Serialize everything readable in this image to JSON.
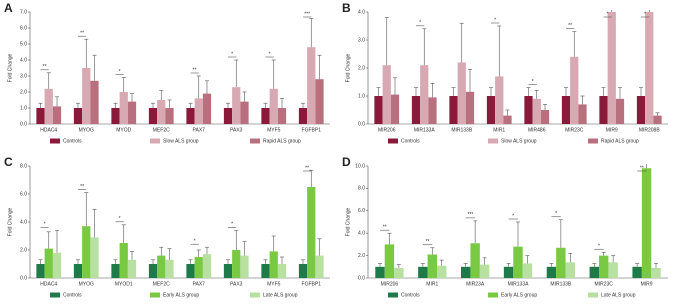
{
  "chart_data": [
    {
      "type": "bar",
      "label": "A",
      "y_label": "Fold Change",
      "categories": [
        "HDAC4",
        "MYOG",
        "MYOD",
        "MEF2C",
        "PAX7",
        "PAX3",
        "MYF5",
        "FGFBP1"
      ],
      "series": [
        {
          "name": "Controls",
          "color": "#8b1a3a",
          "values": [
            1,
            1,
            1,
            1,
            1,
            1,
            1,
            1
          ],
          "errors": [
            0.3,
            0.3,
            0.3,
            0.3,
            0.3,
            0.3,
            0.3,
            0.3
          ]
        },
        {
          "name": "Slow ALS group",
          "color": "#d9a9b3",
          "values": [
            2.2,
            3.5,
            2.0,
            1.5,
            1.6,
            2.3,
            2.2,
            4.8
          ],
          "errors": [
            1.0,
            1.8,
            0.9,
            0.6,
            1.4,
            1.7,
            1.8,
            1.8
          ]
        },
        {
          "name": "Rapid ALS group",
          "color": "#b8707f",
          "values": [
            1.1,
            2.7,
            1.4,
            1.0,
            1.9,
            1.4,
            1.0,
            2.8
          ],
          "errors": [
            0.6,
            1.6,
            0.5,
            0.5,
            0.8,
            0.6,
            0.6,
            1.5
          ]
        }
      ],
      "ylim": [
        0,
        7
      ],
      "yticks": [
        {
          "value": 0,
          "label": "0.0"
        },
        {
          "value": 1,
          "label": "1.0"
        },
        {
          "value": 2,
          "label": "2.0"
        },
        {
          "value": 3,
          "label": "3.0"
        },
        {
          "value": 4,
          "label": "4.0"
        },
        {
          "value": 5,
          "label": "5.0"
        },
        {
          "value": 6,
          "label": "6.0"
        },
        {
          "value": 7,
          "label": "7.0"
        }
      ],
      "significance": [
        {
          "category": "HDAC4",
          "label": "**"
        },
        {
          "category": "MYOG",
          "label": "**"
        },
        {
          "category": "MYOD",
          "label": "*"
        },
        {
          "category": "PAX7",
          "label": "**"
        },
        {
          "category": "PAX3",
          "label": "*"
        },
        {
          "category": "MYF5",
          "label": "*"
        },
        {
          "category": "FGFBP1",
          "label": "***"
        }
      ]
    },
    {
      "type": "bar",
      "label": "B",
      "y_label": "Fold Change",
      "categories": [
        "MIR206",
        "MIR133A",
        "MIR133B",
        "MIR1",
        "MIR486",
        "MIR23C",
        "MIR9",
        "MIR208B"
      ],
      "series": [
        {
          "name": "Controls",
          "color": "#8b1a3a",
          "values": [
            1,
            1,
            1,
            1,
            1,
            1,
            1,
            1
          ],
          "errors": [
            0.3,
            0.3,
            0.3,
            0.3,
            0.3,
            0.3,
            0.3,
            0.3
          ]
        },
        {
          "name": "Slow ALS group",
          "color": "#d9a9b3",
          "values": [
            2.1,
            2.1,
            2.2,
            1.7,
            0.9,
            2.4,
            4.0,
            4.0
          ],
          "errors": [
            1.7,
            1.3,
            1.4,
            1.8,
            0.3,
            0.9,
            1.0,
            1.0
          ]
        },
        {
          "name": "Rapid ALS group",
          "color": "#b8707f",
          "values": [
            1.05,
            0.95,
            1.15,
            0.3,
            0.5,
            0.7,
            0.9,
            0.3
          ],
          "errors": [
            0.6,
            0.5,
            0.8,
            0.2,
            0.2,
            0.3,
            0.4,
            0.1
          ]
        }
      ],
      "ylim": [
        0,
        4
      ],
      "yticks": [
        {
          "value": 0,
          "label": "0.0"
        },
        {
          "value": 1,
          "label": "1.0"
        },
        {
          "value": 2,
          "label": "2.0"
        },
        {
          "value": 3,
          "label": "3.0"
        },
        {
          "value": 4,
          "label": "4.0"
        }
      ],
      "significance": [
        {
          "category": "MIR133A",
          "label": "*"
        },
        {
          "category": "MIR1",
          "label": "*"
        },
        {
          "category": "MIR486",
          "label": "*"
        },
        {
          "category": "MIR23C",
          "label": "**"
        },
        {
          "category": "MIR9",
          "label": "*"
        },
        {
          "category": "MIR208B",
          "label": "*"
        }
      ]
    },
    {
      "type": "bar",
      "label": "C",
      "y_label": "Fold Change",
      "categories": [
        "HDAC4",
        "MYOG",
        "MYOD1",
        "MEF2C",
        "PAX7",
        "PAX3",
        "MYF5",
        "FGFBP1"
      ],
      "series": [
        {
          "name": "Controls",
          "color": "#1f7a4a",
          "values": [
            1,
            1,
            1,
            1,
            1,
            1,
            1,
            1
          ],
          "errors": [
            0.3,
            0.3,
            0.3,
            0.3,
            0.3,
            0.3,
            0.3,
            0.3
          ]
        },
        {
          "name": "Early ALS group",
          "color": "#7ac943",
          "values": [
            2.1,
            3.7,
            2.5,
            1.6,
            1.5,
            2.0,
            1.9,
            6.5
          ],
          "errors": [
            1.2,
            2.4,
            1.3,
            0.6,
            0.5,
            1.4,
            1.1,
            1.2
          ]
        },
        {
          "name": "Late ALS group",
          "color": "#b8e0a0",
          "values": [
            1.8,
            2.9,
            1.3,
            1.3,
            1.7,
            1.6,
            1.0,
            1.6
          ],
          "errors": [
            1.6,
            2.0,
            0.6,
            0.8,
            0.5,
            1.0,
            0.5,
            1.2
          ]
        }
      ],
      "ylim": [
        0,
        8
      ],
      "yticks": [
        {
          "value": 0,
          "label": "0.0"
        },
        {
          "value": 2,
          "label": "2.0"
        },
        {
          "value": 4,
          "label": "4.0"
        },
        {
          "value": 6,
          "label": "6.0"
        },
        {
          "value": 8,
          "label": "8.0"
        }
      ],
      "significance": [
        {
          "category": "HDAC4",
          "label": "*"
        },
        {
          "category": "MYOG",
          "label": "**"
        },
        {
          "category": "MYOD1",
          "label": "*"
        },
        {
          "category": "PAX7",
          "label": "*"
        },
        {
          "category": "PAX3",
          "label": "*"
        },
        {
          "category": "FGFBP1",
          "label": "**"
        }
      ]
    },
    {
      "type": "bar",
      "label": "D",
      "y_label": "Fold Change",
      "categories": [
        "MIR206",
        "MIR1",
        "MIR23A",
        "MIR133A",
        "MIR133B",
        "MIR23C",
        "MIR9"
      ],
      "series": [
        {
          "name": "Controls",
          "color": "#1f7a4a",
          "values": [
            1,
            1,
            1,
            1,
            1,
            1,
            1
          ],
          "errors": [
            0.3,
            0.3,
            0.3,
            0.3,
            0.3,
            0.3,
            0.3
          ]
        },
        {
          "name": "Early ALS group",
          "color": "#7ac943",
          "values": [
            3.0,
            2.1,
            3.1,
            2.8,
            2.7,
            2.0,
            9.8
          ],
          "errors": [
            1.0,
            0.6,
            2.0,
            2.2,
            2.5,
            0.3,
            1.5
          ]
        },
        {
          "name": "Late ALS group",
          "color": "#b8e0a0",
          "values": [
            0.9,
            1.1,
            1.2,
            1.3,
            1.4,
            1.4,
            0.9
          ],
          "errors": [
            0.3,
            0.5,
            0.6,
            0.7,
            0.8,
            0.6,
            0.4
          ]
        }
      ],
      "ylim": [
        0,
        10
      ],
      "yticks": [
        {
          "value": 0,
          "label": "0.0"
        },
        {
          "value": 2,
          "label": "2.0"
        },
        {
          "value": 4,
          "label": "4.0"
        },
        {
          "value": 6,
          "label": "6.0"
        },
        {
          "value": 8,
          "label": "8.0"
        },
        {
          "value": 10,
          "label": "10.0"
        }
      ],
      "significance": [
        {
          "category": "MIR206",
          "label": "**"
        },
        {
          "category": "MIR1",
          "label": "**"
        },
        {
          "category": "MIR23A",
          "label": "***"
        },
        {
          "category": "MIR133A",
          "label": "*"
        },
        {
          "category": "MIR133B",
          "label": "*"
        },
        {
          "category": "MIR23C",
          "label": "*"
        },
        {
          "category": "MIR9",
          "label": "**"
        }
      ]
    }
  ]
}
